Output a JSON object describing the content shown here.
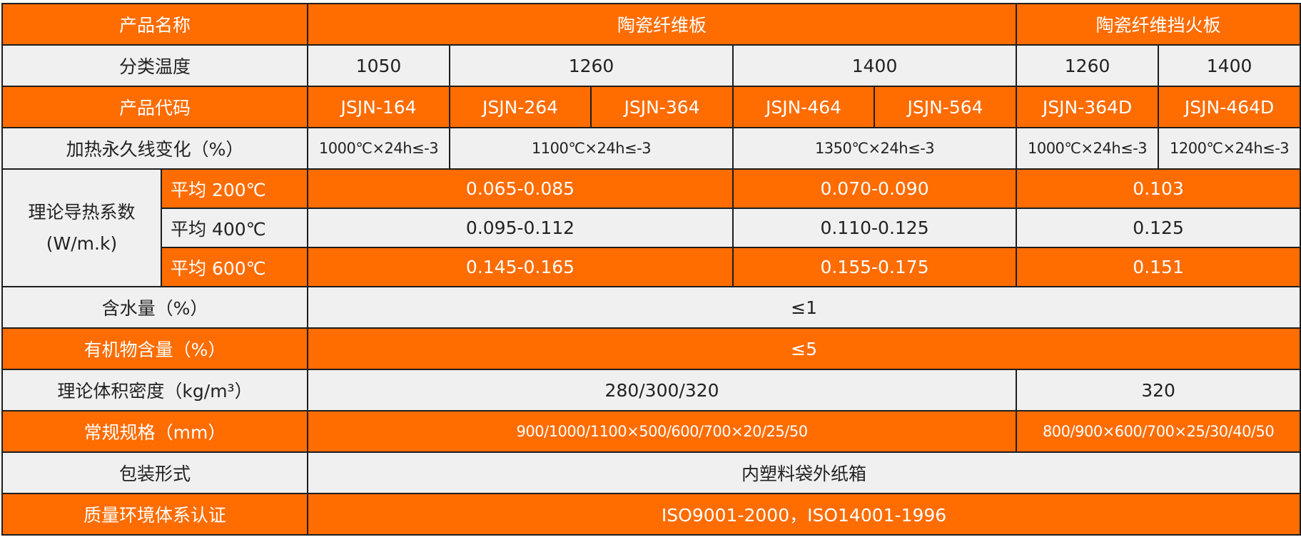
{
  "colors": {
    "accent": "#ff6c00",
    "light": "#f0f0f0",
    "border": "#1e1e1e"
  },
  "rows": {
    "name": {
      "label": "产品名称",
      "board": "陶瓷纤维板",
      "fire_board": "陶瓷纤维挡火板"
    },
    "temp": {
      "label": "分类温度",
      "values": [
        "1050",
        "1260",
        "1400",
        "1260",
        "1400"
      ]
    },
    "code": {
      "label": "产品代码",
      "values": [
        "JSJN-164",
        "JSJN-264",
        "JSJN-364",
        "JSJN-464",
        "JSJN-564",
        "JSJN-364D",
        "JSJN-464D"
      ]
    },
    "linear": {
      "label": "加热永久线变化（%）",
      "values": [
        "1000℃×24h≤-3",
        "1100℃×24h≤-3",
        "1350℃×24h≤-3",
        "1000℃×24h≤-3",
        "1200℃×24h≤-3"
      ]
    },
    "conductivity": {
      "label": "理论导热系数",
      "unit": "(W/m.k)",
      "rows": [
        {
          "label": "平均 200℃",
          "values": [
            "0.065-0.085",
            "0.070-0.090",
            "0.103"
          ]
        },
        {
          "label": "平均 400℃",
          "values": [
            "0.095-0.112",
            "0.110-0.125",
            "0.125"
          ]
        },
        {
          "label": "平均 600℃",
          "values": [
            "0.145-0.165",
            "0.155-0.175",
            "0.151"
          ]
        }
      ]
    },
    "water": {
      "label": "含水量（%）",
      "value": "≤1"
    },
    "organic": {
      "label": "有机物含量（%）",
      "value": "≤5"
    },
    "density": {
      "label": "理论体积密度（kg/m³）",
      "values": [
        "280/300/320",
        "320"
      ]
    },
    "size": {
      "label": "常规规格（mm）",
      "values": [
        "900/1000/1100×500/600/700×20/25/50",
        "800/900×600/700×25/30/40/50"
      ]
    },
    "package": {
      "label": "包装形式",
      "value": "内塑料袋外纸箱"
    },
    "cert": {
      "label": "质量环境体系认证",
      "value": "ISO9001-2000，ISO14001-1996"
    }
  }
}
